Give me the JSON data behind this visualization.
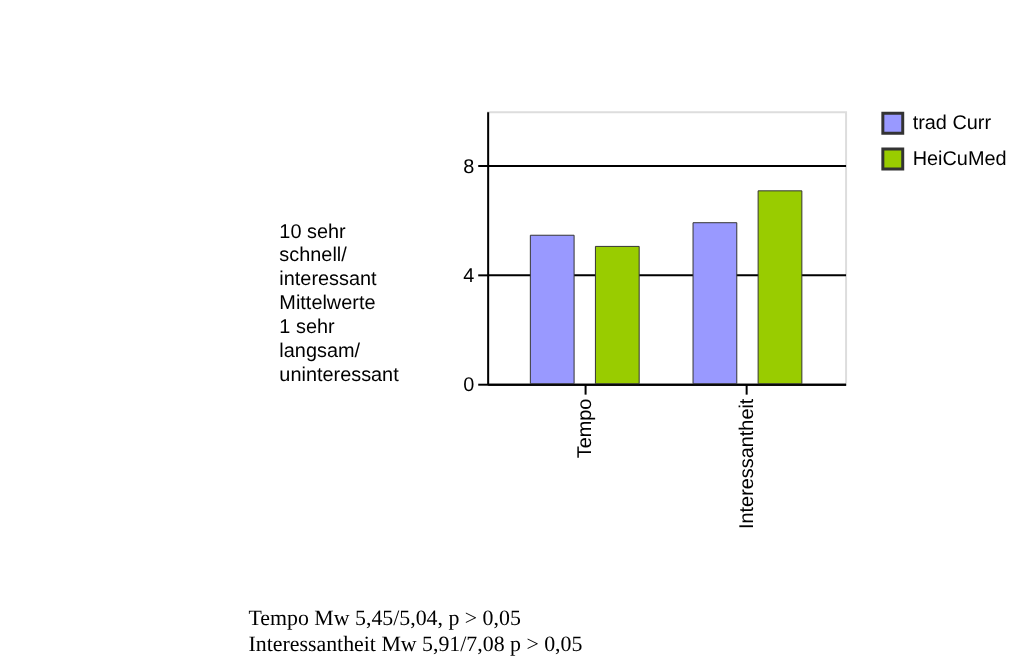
{
  "chart_data": {
    "type": "bar",
    "ylabel": "10 sehr\nschnell/\ninteressant\n\nMittelwerte\n\n1 sehr\nlangsam/\nuninteressant",
    "categories": [
      "Tempo",
      "Interessantheit"
    ],
    "series": [
      {
        "name": "trad Curr",
        "color": "#9999ff",
        "values": [
          5.45,
          5.91
        ]
      },
      {
        "name": "HeiCuMed",
        "color": "#99cc00",
        "values": [
          5.04,
          7.08
        ]
      }
    ],
    "ylim": [
      0,
      10
    ],
    "yticks": [
      0,
      4,
      8
    ],
    "grid": "y",
    "legend": "right",
    "annotations": [
      "Tempo Mw 5,45/5,04, p > 0,05",
      "Interessantheit Mw 5,91/7,08 p > 0,05"
    ]
  }
}
